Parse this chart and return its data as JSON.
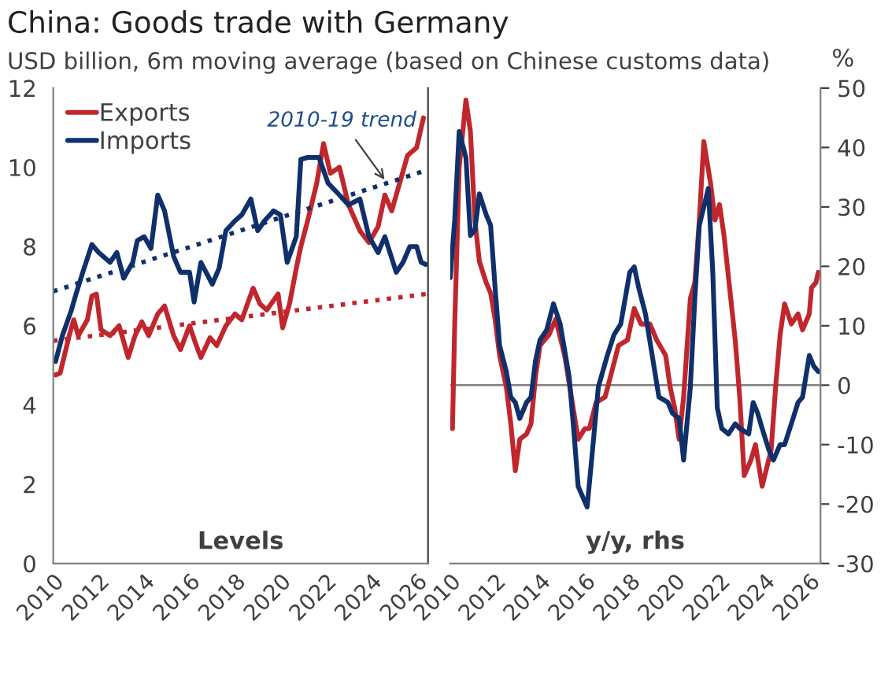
{
  "chart_data": [
    {
      "type": "line",
      "title": "China: Goods trade with Germany",
      "subtitle": "USD billion, 6m moving average (based on Chinese customs data)",
      "xlim": [
        2010,
        2026.5
      ],
      "xticks": [
        2010,
        2012,
        2014,
        2016,
        2018,
        2020,
        2022,
        2024,
        2026
      ],
      "ylim": [
        0,
        12
      ],
      "yticks": [
        0,
        2,
        4,
        6,
        8,
        10,
        12
      ],
      "legend": "top left",
      "annotations": [
        "Levels",
        {
          "text": "2010-19 trend",
          "x": 2024.7,
          "y": 9.6
        }
      ],
      "series": [
        {
          "name": "Exports",
          "color": "#c0272d",
          "x": [
            2010.1,
            2010.3,
            2010.7,
            2010.9,
            2011.1,
            2011.5,
            2011.7,
            2011.9,
            2012.1,
            2012.5,
            2012.9,
            2013.3,
            2013.6,
            2013.9,
            2014.2,
            2014.6,
            2014.9,
            2015.3,
            2015.6,
            2016.0,
            2016.3,
            2016.5,
            2016.9,
            2017.2,
            2017.6,
            2018.0,
            2018.3,
            2018.8,
            2019.1,
            2019.4,
            2019.9,
            2020.1,
            2020.4,
            2020.7,
            2020.9,
            2021.2,
            2021.6,
            2021.9,
            2022.2,
            2022.6,
            2023.0,
            2023.5,
            2023.9,
            2024.3,
            2024.6,
            2024.9,
            2025.3,
            2025.6,
            2026.0,
            2026.3
          ],
          "values": [
            4.76,
            4.8,
            5.75,
            6.15,
            5.75,
            6.15,
            6.75,
            6.8,
            5.9,
            5.75,
            6.0,
            5.2,
            5.75,
            6.1,
            5.75,
            6.3,
            6.5,
            5.75,
            5.4,
            6.0,
            5.5,
            5.2,
            5.7,
            5.5,
            6.0,
            6.3,
            6.15,
            6.95,
            6.55,
            6.4,
            6.8,
            5.95,
            6.55,
            7.45,
            8.0,
            8.65,
            9.6,
            10.6,
            9.85,
            10.0,
            9.05,
            8.4,
            8.1,
            8.5,
            9.3,
            8.9,
            9.7,
            10.3,
            10.5,
            11.25
          ]
        },
        {
          "name": "Imports",
          "color": "#10306b",
          "x": [
            2010.1,
            2010.4,
            2010.8,
            2011.0,
            2011.3,
            2011.7,
            2012.0,
            2012.5,
            2012.8,
            2013.1,
            2013.5,
            2013.7,
            2014.0,
            2014.3,
            2014.6,
            2014.9,
            2015.3,
            2015.6,
            2016.0,
            2016.2,
            2016.5,
            2017.0,
            2017.3,
            2017.6,
            2018.0,
            2018.3,
            2018.7,
            2019.0,
            2019.3,
            2019.7,
            2020.0,
            2020.3,
            2020.7,
            2020.9,
            2021.2,
            2021.7,
            2022.1,
            2022.6,
            2023.0,
            2023.5,
            2023.9,
            2024.3,
            2024.6,
            2025.1,
            2025.4,
            2025.7,
            2026.0,
            2026.2,
            2026.4
          ],
          "values": [
            5.1,
            5.75,
            6.4,
            6.8,
            7.35,
            8.05,
            7.85,
            7.6,
            7.85,
            7.2,
            7.6,
            8.15,
            8.25,
            7.95,
            9.3,
            8.9,
            7.75,
            7.35,
            7.35,
            6.6,
            7.6,
            7.05,
            7.45,
            8.4,
            8.65,
            8.8,
            9.2,
            8.4,
            8.65,
            8.9,
            8.8,
            7.6,
            8.25,
            10.2,
            10.25,
            10.25,
            9.6,
            9.3,
            9.05,
            9.2,
            8.25,
            7.85,
            8.25,
            7.35,
            7.6,
            8.0,
            8.0,
            7.6,
            7.55
          ]
        },
        {
          "color": "#10306b",
          "line_style": "dotted",
          "x": [
            2010,
            2026.3
          ],
          "values": [
            6.87,
            9.9
          ]
        },
        {
          "color": "#c0272d",
          "line_style": "dotted",
          "x": [
            2010,
            2026.4
          ],
          "values": [
            5.62,
            6.8
          ]
        }
      ]
    },
    {
      "type": "line",
      "xlim": [
        2010,
        2026.5
      ],
      "xticks": [
        2010,
        2012,
        2014,
        2016,
        2018,
        2020,
        2022,
        2024,
        2026
      ],
      "y2lim": [
        -30,
        50
      ],
      "y2ticks": [
        -30,
        -20,
        -10,
        0,
        10,
        20,
        30,
        40,
        50
      ],
      "y2label": "%",
      "annotations": [
        "y/y, rhs"
      ],
      "ref_lines": [
        {
          "axis": "y2",
          "value": 0,
          "color": "#808080"
        }
      ],
      "series": [
        {
          "color": "#c0272d",
          "axis": "y2",
          "x": [
            2010.1,
            2010.2,
            2010.4,
            2010.7,
            2010.9,
            2011.1,
            2011.3,
            2011.6,
            2011.8,
            2012.0,
            2012.2,
            2012.5,
            2012.7,
            2012.9,
            2013.1,
            2013.4,
            2013.6,
            2013.8,
            2014.0,
            2014.4,
            2014.7,
            2015.1,
            2015.4,
            2015.7,
            2016.0,
            2016.2,
            2016.5,
            2016.9,
            2017.2,
            2017.5,
            2017.9,
            2018.2,
            2018.5,
            2018.9,
            2019.2,
            2019.6,
            2019.8,
            2020.0,
            2020.2,
            2020.4,
            2020.7,
            2020.9,
            2021.1,
            2021.3,
            2021.6,
            2021.8,
            2022.0,
            2022.2,
            2022.5,
            2022.7,
            2022.9,
            2023.1,
            2023.4,
            2023.6,
            2023.9,
            2024.3,
            2024.5,
            2024.7,
            2024.9,
            2025.2,
            2025.5,
            2025.7,
            2026.0,
            2026.1,
            2026.3,
            2026.4
          ],
          "values": [
            -7.3,
            10.2,
            36.6,
            48,
            42.7,
            27.8,
            20.8,
            17.3,
            15.5,
            11.1,
            5.0,
            -0.3,
            -6.5,
            -14.4,
            -9.1,
            -8.2,
            -6.5,
            1.4,
            6.7,
            8.5,
            11.1,
            5.0,
            -2.0,
            -9.1,
            -7.3,
            -7.3,
            -2.9,
            -2.0,
            2.3,
            6.7,
            7.6,
            12.9,
            10.3,
            10.3,
            7.6,
            5.0,
            -0.3,
            -3.8,
            -9.1,
            -2.0,
            14.6,
            17.3,
            27.8,
            41.0,
            34.0,
            27.8,
            30.4,
            25.2,
            14.6,
            7.6,
            -2.0,
            -15.2,
            -12.6,
            -10.0,
            -17.0,
            -10.9,
            -0.3,
            8.5,
            13.7,
            10.3,
            12.0,
            9.3,
            12.0,
            16.4,
            17.3,
            19.0
          ]
        },
        {
          "color": "#10306b",
          "axis": "y2",
          "x": [
            2010.0,
            2010.2,
            2010.4,
            2010.7,
            2010.9,
            2011.1,
            2011.3,
            2011.6,
            2011.8,
            2012.0,
            2012.2,
            2012.5,
            2012.7,
            2012.9,
            2013.1,
            2013.4,
            2013.6,
            2013.8,
            2014.0,
            2014.3,
            2014.6,
            2014.9,
            2015.3,
            2015.5,
            2015.7,
            2016.1,
            2016.3,
            2016.6,
            2017.0,
            2017.3,
            2017.6,
            2018.0,
            2018.2,
            2018.4,
            2018.7,
            2019.0,
            2019.3,
            2019.7,
            2019.9,
            2020.2,
            2020.4,
            2020.7,
            2020.9,
            2021.1,
            2021.5,
            2021.7,
            2021.9,
            2022.1,
            2022.4,
            2022.7,
            2022.9,
            2023.3,
            2023.5,
            2023.7,
            2023.9,
            2024.2,
            2024.4,
            2024.7,
            2024.9,
            2025.2,
            2025.5,
            2025.7,
            2026.0,
            2026.2,
            2026.4
          ],
          "values": [
            18.1,
            27.8,
            42.7,
            38.3,
            25.2,
            26.1,
            32.2,
            28.7,
            26.9,
            16.4,
            6.7,
            2.3,
            -2.0,
            -2.9,
            -5.6,
            -2.9,
            -2.0,
            4.1,
            7.6,
            9.3,
            13.7,
            10.3,
            1.4,
            -7.3,
            -17.0,
            -20.5,
            -12.6,
            -0.3,
            5.0,
            8.5,
            10.3,
            19.0,
            19.9,
            16.4,
            12.0,
            5.0,
            -2.0,
            -2.9,
            -4.7,
            -5.6,
            -12.6,
            -0.3,
            14.6,
            26.9,
            33.1,
            19.0,
            -3.8,
            -7.3,
            -8.2,
            -6.5,
            -7.3,
            -8.2,
            -2.9,
            -4.7,
            -7.3,
            -10.9,
            -12.6,
            -10.0,
            -10.0,
            -6.5,
            -2.9,
            -2.0,
            5.0,
            3.2,
            2.3
          ]
        }
      ]
    }
  ]
}
